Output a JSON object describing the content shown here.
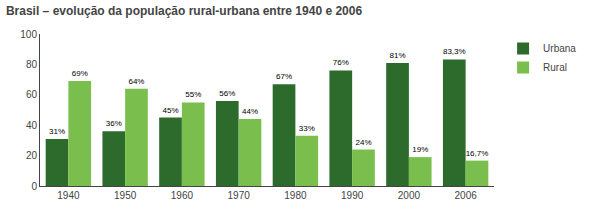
{
  "chart_data": {
    "type": "bar",
    "title": "Brasil – evolução da população rural-urbana entre 1940 e 2006",
    "categories": [
      "1940",
      "1950",
      "1960",
      "1970",
      "1980",
      "1990",
      "2000",
      "2006"
    ],
    "series": [
      {
        "name": "Urbana",
        "color": "#2d6b2d",
        "values": [
          31,
          36,
          45,
          56,
          67,
          76,
          81,
          83.3
        ],
        "value_labels": [
          "31%",
          "36%",
          "45%",
          "56%",
          "67%",
          "76%",
          "81%",
          "83,3%"
        ]
      },
      {
        "name": "Rural",
        "color": "#7abf4e",
        "values": [
          69,
          64,
          55,
          44,
          33,
          24,
          19,
          16.7
        ],
        "value_labels": [
          "69%",
          "64%",
          "55%",
          "44%",
          "33%",
          "24%",
          "19%",
          "16,7%"
        ]
      }
    ],
    "ylim": [
      0,
      100
    ],
    "yticks": [
      0,
      20,
      40,
      60,
      80,
      100
    ],
    "grid": false,
    "legend": "right",
    "data_labels": true
  }
}
